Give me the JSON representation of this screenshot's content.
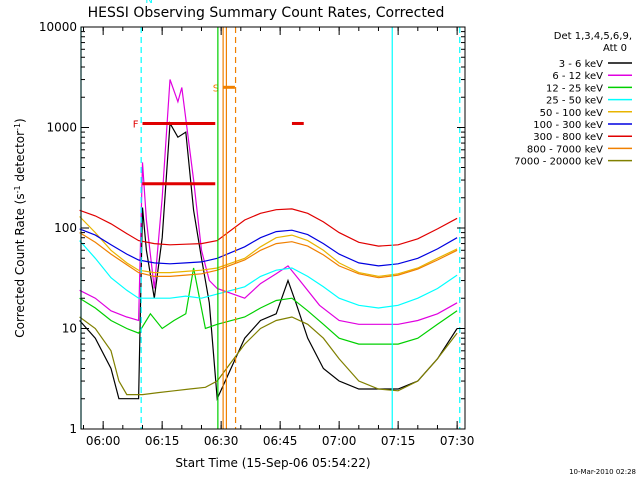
{
  "chart_data": {
    "type": "line",
    "title": "HESSI Observing Summary Count Rates, Corrected",
    "xlabel": "Start Time (15-Sep-06 05:54:22)",
    "ylabel_main": "Corrected Count Rate (s",
    "ylabel_sup1": "-1",
    "ylabel_mid": " detector",
    "ylabel_sup2": "-1",
    "ylabel_end": ")",
    "yscale": "log",
    "ylim": [
      1,
      10000
    ],
    "xlim": [
      "05:54:22",
      "07:32:00"
    ],
    "x_tick_labels": [
      "06:00",
      "06:15",
      "06:30",
      "06:45",
      "07:00",
      "07:15",
      "07:30"
    ],
    "y_tick_labels": [
      "1",
      "10",
      "100",
      "1000",
      "10000"
    ],
    "grid": false,
    "legend_position": "right",
    "legend_header": [
      "Det 1,3,4,5,6,9,",
      "Att 0"
    ],
    "colors": {
      "3-6": "#000000",
      "6-12": "#e000e0",
      "12-25": "#00d000",
      "25-50": "#00ffff",
      "50-100": "#e8b400",
      "100-300": "#0000e0",
      "300-800": "#e00000",
      "800-7000": "#f08000",
      "7000-20000": "#808000"
    },
    "series": [
      {
        "name": "3 - 6 keV",
        "color": "#000000",
        "points": [
          [
            "05:54",
            "12"
          ],
          [
            "05:58",
            "8"
          ],
          [
            "06:02",
            "4"
          ],
          [
            "06:04",
            "2"
          ],
          [
            "06:09",
            "2"
          ],
          [
            "06:10",
            "160"
          ],
          [
            "06:11",
            "60"
          ],
          [
            "06:13",
            "20"
          ],
          [
            "06:15",
            "80"
          ],
          [
            "06:17",
            "1100"
          ],
          [
            "06:19",
            "800"
          ],
          [
            "06:21",
            "900"
          ],
          [
            "06:23",
            "150"
          ],
          [
            "06:25",
            "50"
          ],
          [
            "06:27",
            "18"
          ],
          [
            "06:29",
            "2"
          ],
          [
            "06:36",
            "8"
          ],
          [
            "06:40",
            "12"
          ],
          [
            "06:44",
            "14"
          ],
          [
            "06:47",
            "30"
          ],
          [
            "06:49",
            "18"
          ],
          [
            "06:52",
            "8"
          ],
          [
            "06:56",
            "4"
          ],
          [
            "07:00",
            "3"
          ],
          [
            "07:05",
            "2.5"
          ],
          [
            "07:10",
            "2.5"
          ],
          [
            "07:15",
            "2.5"
          ],
          [
            "07:20",
            "3"
          ],
          [
            "07:25",
            "5"
          ],
          [
            "07:30",
            "10"
          ]
        ]
      },
      {
        "name": "6 - 12 keV",
        "color": "#e000e0",
        "points": [
          [
            "05:54",
            "24"
          ],
          [
            "05:58",
            "20"
          ],
          [
            "06:02",
            "15"
          ],
          [
            "06:06",
            "13"
          ],
          [
            "06:09",
            "12"
          ],
          [
            "06:10",
            "450"
          ],
          [
            "06:11",
            "120"
          ],
          [
            "06:13",
            "25"
          ],
          [
            "06:15",
            "200"
          ],
          [
            "06:17",
            "3000"
          ],
          [
            "06:19",
            "1800"
          ],
          [
            "06:20",
            "2500"
          ],
          [
            "06:23",
            "300"
          ],
          [
            "06:25",
            "60"
          ],
          [
            "06:27",
            "30"
          ],
          [
            "06:29",
            "25"
          ],
          [
            "06:36",
            "20"
          ],
          [
            "06:40",
            "28"
          ],
          [
            "06:44",
            "35"
          ],
          [
            "06:47",
            "42"
          ],
          [
            "06:50",
            "30"
          ],
          [
            "06:55",
            "17"
          ],
          [
            "07:00",
            "12"
          ],
          [
            "07:05",
            "11"
          ],
          [
            "07:10",
            "11"
          ],
          [
            "07:15",
            "11"
          ],
          [
            "07:20",
            "12"
          ],
          [
            "07:25",
            "14"
          ],
          [
            "07:30",
            "18"
          ]
        ]
      },
      {
        "name": "12 - 25 keV",
        "color": "#00d000",
        "points": [
          [
            "05:54",
            "20"
          ],
          [
            "05:58",
            "16"
          ],
          [
            "06:02",
            "12"
          ],
          [
            "06:06",
            "10"
          ],
          [
            "06:09",
            "9"
          ],
          [
            "06:12",
            "14"
          ],
          [
            "06:15",
            "10"
          ],
          [
            "06:18",
            "12"
          ],
          [
            "06:21",
            "14"
          ],
          [
            "06:23",
            "40"
          ],
          [
            "06:26",
            "10"
          ],
          [
            "06:29",
            "11"
          ],
          [
            "06:36",
            "13"
          ],
          [
            "06:40",
            "16"
          ],
          [
            "06:44",
            "19"
          ],
          [
            "06:48",
            "20"
          ],
          [
            "06:52",
            "15"
          ],
          [
            "06:56",
            "11"
          ],
          [
            "07:00",
            "8"
          ],
          [
            "07:05",
            "7"
          ],
          [
            "07:10",
            "7"
          ],
          [
            "07:15",
            "7"
          ],
          [
            "07:20",
            "8"
          ],
          [
            "07:25",
            "11"
          ],
          [
            "07:30",
            "15"
          ]
        ]
      },
      {
        "name": "25 - 50 keV",
        "color": "#00ffff",
        "points": [
          [
            "05:54",
            "75"
          ],
          [
            "05:58",
            "50"
          ],
          [
            "06:02",
            "32"
          ],
          [
            "06:06",
            "24"
          ],
          [
            "06:09",
            "20"
          ],
          [
            "06:13",
            "20"
          ],
          [
            "06:17",
            "20"
          ],
          [
            "06:21",
            "21"
          ],
          [
            "06:25",
            "20"
          ],
          [
            "06:29",
            "22"
          ],
          [
            "06:36",
            "26"
          ],
          [
            "06:40",
            "33"
          ],
          [
            "06:44",
            "38"
          ],
          [
            "06:48",
            "40"
          ],
          [
            "06:52",
            "33"
          ],
          [
            "06:56",
            "26"
          ],
          [
            "07:00",
            "20"
          ],
          [
            "07:05",
            "17"
          ],
          [
            "07:10",
            "16"
          ],
          [
            "07:15",
            "17"
          ],
          [
            "07:20",
            "20"
          ],
          [
            "07:25",
            "25"
          ],
          [
            "07:30",
            "34"
          ]
        ]
      },
      {
        "name": "50 - 100 keV",
        "color": "#e8b400",
        "points": [
          [
            "05:54",
            "130"
          ],
          [
            "05:58",
            "90"
          ],
          [
            "06:02",
            "60"
          ],
          [
            "06:06",
            "45"
          ],
          [
            "06:09",
            "38"
          ],
          [
            "06:13",
            "36"
          ],
          [
            "06:17",
            "36"
          ],
          [
            "06:21",
            "37"
          ],
          [
            "06:25",
            "38"
          ],
          [
            "06:29",
            "40"
          ],
          [
            "06:36",
            "50"
          ],
          [
            "06:40",
            "65"
          ],
          [
            "06:44",
            "80"
          ],
          [
            "06:48",
            "85"
          ],
          [
            "06:52",
            "75"
          ],
          [
            "06:56",
            "60"
          ],
          [
            "07:00",
            "45"
          ],
          [
            "07:05",
            "36"
          ],
          [
            "07:10",
            "33"
          ],
          [
            "07:15",
            "35"
          ],
          [
            "07:20",
            "40"
          ],
          [
            "07:25",
            "50"
          ],
          [
            "07:30",
            "62"
          ]
        ]
      },
      {
        "name": "100 - 300 keV",
        "color": "#0000e0",
        "points": [
          [
            "05:54",
            "98"
          ],
          [
            "05:58",
            "85"
          ],
          [
            "06:02",
            "68"
          ],
          [
            "06:06",
            "55"
          ],
          [
            "06:09",
            "48"
          ],
          [
            "06:13",
            "45"
          ],
          [
            "06:17",
            "44"
          ],
          [
            "06:21",
            "45"
          ],
          [
            "06:25",
            "46"
          ],
          [
            "06:29",
            "50"
          ],
          [
            "06:36",
            "65"
          ],
          [
            "06:40",
            "80"
          ],
          [
            "06:44",
            "92"
          ],
          [
            "06:48",
            "95"
          ],
          [
            "06:52",
            "86"
          ],
          [
            "06:56",
            "70"
          ],
          [
            "07:00",
            "55"
          ],
          [
            "07:05",
            "45"
          ],
          [
            "07:10",
            "42"
          ],
          [
            "07:15",
            "44"
          ],
          [
            "07:20",
            "50"
          ],
          [
            "07:25",
            "62"
          ],
          [
            "07:30",
            "80"
          ]
        ]
      },
      {
        "name": "300 - 800 keV",
        "color": "#e00000",
        "points": [
          [
            "05:54",
            "150"
          ],
          [
            "05:58",
            "132"
          ],
          [
            "06:02",
            "110"
          ],
          [
            "06:06",
            "88"
          ],
          [
            "06:09",
            "75"
          ],
          [
            "06:13",
            "70"
          ],
          [
            "06:17",
            "68"
          ],
          [
            "06:21",
            "69"
          ],
          [
            "06:25",
            "70"
          ],
          [
            "06:29",
            "75"
          ],
          [
            "06:36",
            "120"
          ],
          [
            "06:40",
            "140"
          ],
          [
            "06:44",
            "152"
          ],
          [
            "06:48",
            "155"
          ],
          [
            "06:52",
            "140"
          ],
          [
            "06:56",
            "115"
          ],
          [
            "07:00",
            "90"
          ],
          [
            "07:05",
            "72"
          ],
          [
            "07:10",
            "66"
          ],
          [
            "07:15",
            "68"
          ],
          [
            "07:20",
            "78"
          ],
          [
            "07:25",
            "98"
          ],
          [
            "07:30",
            "125"
          ]
        ]
      },
      {
        "name": "800 - 7000 keV",
        "color": "#f08000",
        "points": [
          [
            "05:54",
            "90"
          ],
          [
            "05:58",
            "72"
          ],
          [
            "06:02",
            "55"
          ],
          [
            "06:06",
            "43"
          ],
          [
            "06:09",
            "36"
          ],
          [
            "06:13",
            "33"
          ],
          [
            "06:17",
            "33"
          ],
          [
            "06:21",
            "34"
          ],
          [
            "06:25",
            "35"
          ],
          [
            "06:29",
            "38"
          ],
          [
            "06:36",
            "48"
          ],
          [
            "06:40",
            "60"
          ],
          [
            "06:44",
            "70"
          ],
          [
            "06:48",
            "73"
          ],
          [
            "06:52",
            "66"
          ],
          [
            "06:56",
            "54"
          ],
          [
            "07:00",
            "42"
          ],
          [
            "07:05",
            "35"
          ],
          [
            "07:10",
            "32"
          ],
          [
            "07:15",
            "34"
          ],
          [
            "07:20",
            "39"
          ],
          [
            "07:25",
            "48"
          ],
          [
            "07:30",
            "60"
          ]
        ]
      },
      {
        "name": "7000 - 20000 keV",
        "color": "#808000",
        "points": [
          [
            "05:54",
            "13"
          ],
          [
            "05:58",
            "10"
          ],
          [
            "06:02",
            "6"
          ],
          [
            "06:04",
            "3"
          ],
          [
            "06:06",
            "2.2"
          ],
          [
            "06:10",
            "2.2"
          ],
          [
            "06:14",
            "2.3"
          ],
          [
            "06:18",
            "2.4"
          ],
          [
            "06:22",
            "2.5"
          ],
          [
            "06:26",
            "2.6"
          ],
          [
            "06:29",
            "3"
          ],
          [
            "06:36",
            "7"
          ],
          [
            "06:40",
            "10"
          ],
          [
            "06:44",
            "12"
          ],
          [
            "06:48",
            "13"
          ],
          [
            "06:52",
            "11"
          ],
          [
            "06:56",
            "8"
          ],
          [
            "07:00",
            "5"
          ],
          [
            "07:05",
            "3"
          ],
          [
            "07:10",
            "2.5"
          ],
          [
            "07:15",
            "2.4"
          ],
          [
            "07:20",
            "3"
          ],
          [
            "07:25",
            "5"
          ],
          [
            "07:30",
            "9"
          ]
        ]
      }
    ],
    "status_bars": [
      {
        "label": "N",
        "color": "#00ffff",
        "segments": [
          [
            "05:54",
            "06:09:40"
          ],
          [
            "07:13:30",
            "07:32"
          ]
        ],
        "level": "4.3"
      },
      {
        "label": "F",
        "color": "#e00000",
        "segments": [
          [
            "06:10",
            "06:28:30"
          ],
          [
            "06:48",
            "06:51"
          ]
        ],
        "level": "0.76"
      },
      {
        "label": "F",
        "color": "#e00000",
        "segments": [
          [
            "06:10",
            "06:28:30"
          ]
        ],
        "level": "0.61"
      },
      {
        "label": "S",
        "color": "#f08000",
        "segments": [
          [
            "06:30:30",
            "06:33:30"
          ]
        ],
        "level": "0.85"
      }
    ],
    "vlines": [
      {
        "time": "05:54:22",
        "color": "#00ffff",
        "style": "solid"
      },
      {
        "time": "06:09:40",
        "color": "#00ffff",
        "style": "dashed"
      },
      {
        "time": "06:29:10",
        "color": "#00d000",
        "style": "solid"
      },
      {
        "time": "06:30:30",
        "color": "#f08000",
        "style": "solid"
      },
      {
        "time": "06:31:20",
        "color": "#f08000",
        "style": "solid"
      },
      {
        "time": "06:33:40",
        "color": "#f08000",
        "style": "dashed"
      },
      {
        "time": "07:13:30",
        "color": "#00ffff",
        "style": "solid"
      },
      {
        "time": "07:30:40",
        "color": "#00ffff",
        "style": "dashed"
      }
    ],
    "footer_date": "10-Mar-2010 02:28"
  }
}
